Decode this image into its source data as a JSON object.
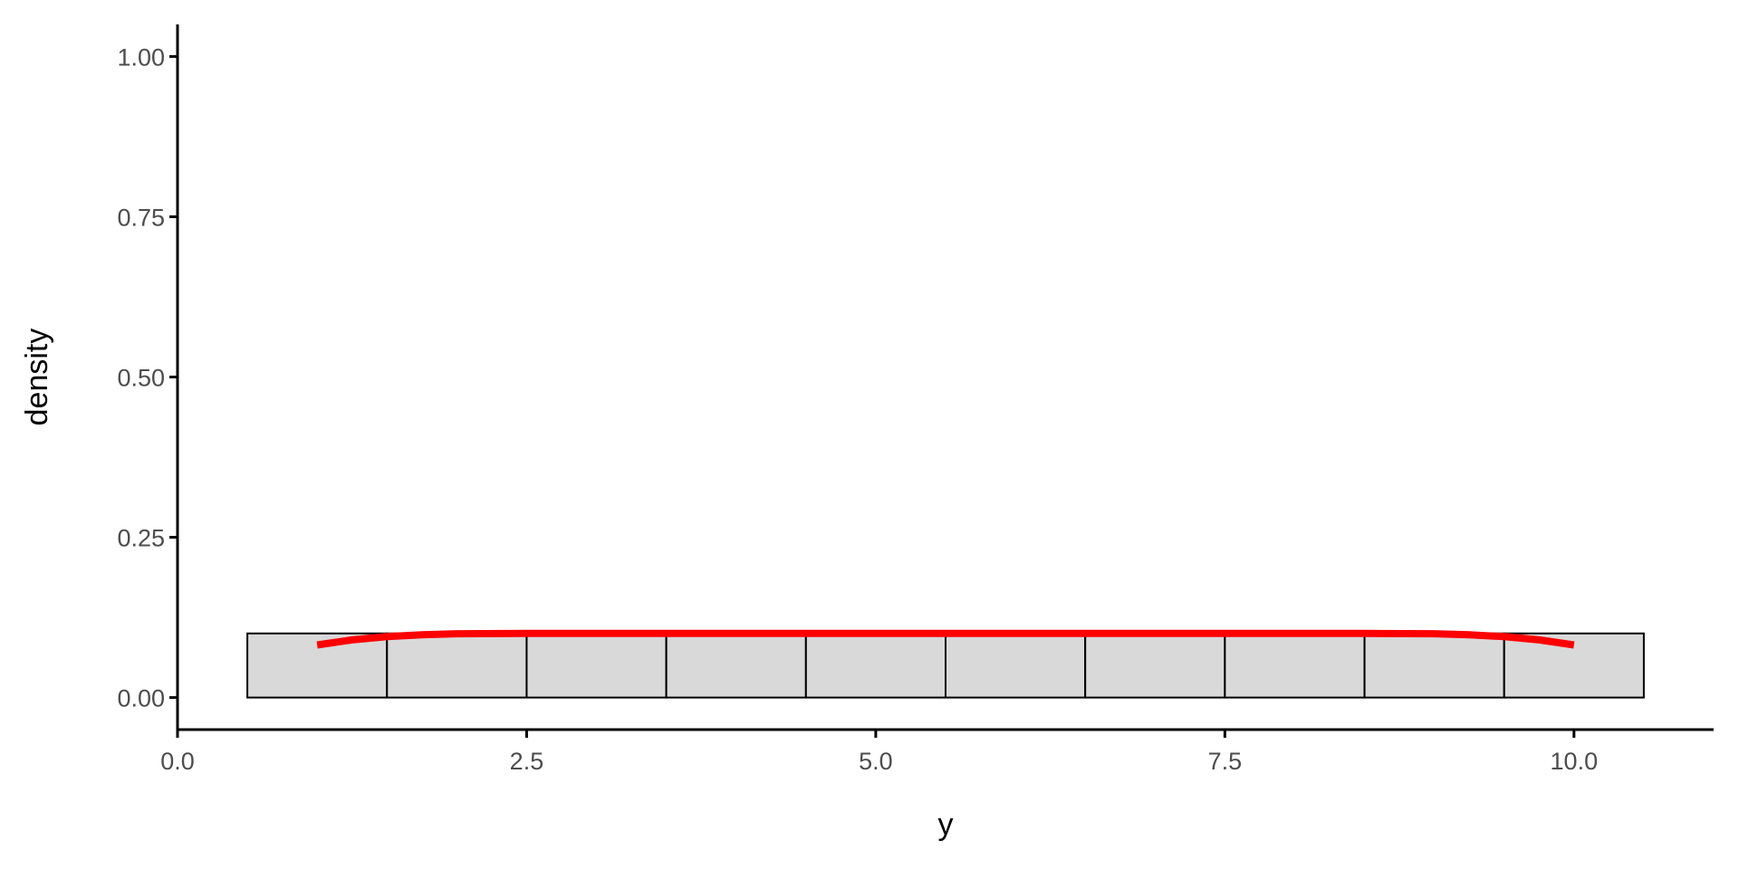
{
  "chart_data": {
    "type": "bar",
    "subtype": "histogram with density line",
    "title": "",
    "xlabel": "y",
    "ylabel": "density",
    "xlim": [
      0,
      11.0
    ],
    "ylim": [
      -0.05,
      1.05
    ],
    "x_ticks": [
      0,
      2.5,
      5,
      7.5,
      10
    ],
    "x_tick_labels": [
      "0.0",
      "2.5",
      "5.0",
      "7.5",
      "10.0"
    ],
    "y_ticks": [
      0,
      0.25,
      0.5,
      0.75,
      1.0
    ],
    "y_tick_labels": [
      "0.00",
      "0.25",
      "0.50",
      "0.75",
      "1.00"
    ],
    "grid": false,
    "histogram": {
      "bin_centers": [
        1,
        2,
        3,
        4,
        5,
        6,
        7,
        8,
        9,
        10
      ],
      "bin_width": 1,
      "values": [
        0.1,
        0.1,
        0.1,
        0.1,
        0.1,
        0.1,
        0.1,
        0.1,
        0.1,
        0.1
      ],
      "fill": "#d9d9d9",
      "stroke": "#000000"
    },
    "density_line": {
      "x": [
        1,
        1.25,
        1.5,
        1.75,
        2,
        2.5,
        3,
        5.5,
        8,
        8.5,
        9,
        9.25,
        9.5,
        9.75,
        10
      ],
      "y": [
        0.082,
        0.09,
        0.095,
        0.098,
        0.0995,
        0.1,
        0.1,
        0.1,
        0.1,
        0.1,
        0.0995,
        0.098,
        0.095,
        0.09,
        0.082
      ],
      "color": "#ff0000"
    }
  }
}
